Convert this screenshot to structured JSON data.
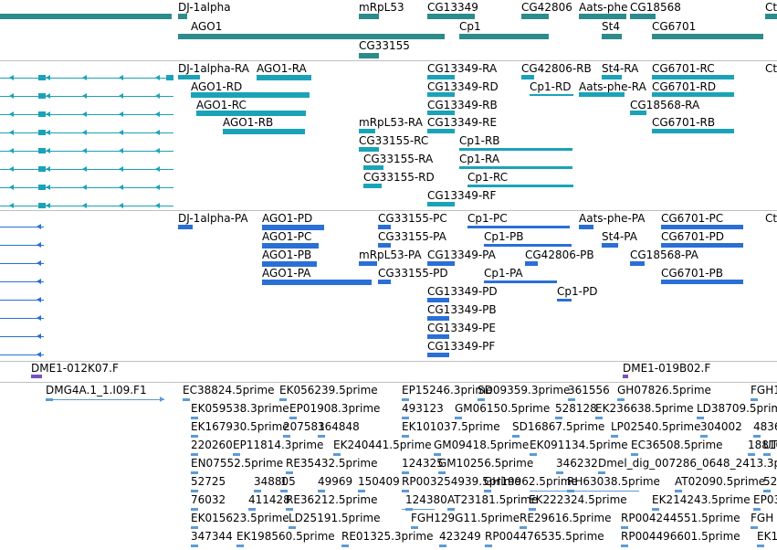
{
  "colors": {
    "gene": "#2e8b8b",
    "transcript": "#1aa3b8",
    "protein": "#2a6fd6",
    "clone": "#7a4fc0",
    "est": "#5b9bd5",
    "sep": "#bfbfbf"
  },
  "tracks": {
    "gene": {
      "labels": [
        "DJ-1alpha",
        "mRpL53",
        "CG13349",
        "CG42806",
        "Aats-phe",
        "CG18568",
        "Ctr",
        "AGO1",
        "Cp1",
        "St4",
        "CG6701",
        "CG33155"
      ]
    },
    "transcript": {
      "labels": [
        "DJ-1alpha-RA",
        "AGO1-RA",
        "CG13349-RA",
        "CG42806-RB",
        "St4-RA",
        "CG6701-RC",
        "Ctr",
        "AGO1-RD",
        "CG13349-RD",
        "Cp1-RD",
        "Aats-phe-RA",
        "CG6701-RD",
        "AGO1-RC",
        "CG13349-RB",
        "CG18568-RA",
        "AGO1-RB",
        "mRpL53-RA",
        "CG13349-RE",
        "CG6701-RB",
        "CG33155-RC",
        "Cp1-RB",
        "CG33155-RA",
        "Cp1-RA",
        "CG33155-RD",
        "Cp1-RC",
        "CG13349-RF"
      ]
    },
    "protein": {
      "labels": [
        "DJ-1alpha-PA",
        "AGO1-PD",
        "CG33155-PC",
        "Cp1-PC",
        "Aats-phe-PA",
        "CG6701-PC",
        "Ctr",
        "AGO1-PC",
        "CG33155-PA",
        "Cp1-PB",
        "St4-PA",
        "CG6701-PD",
        "AGO1-PB",
        "mRpL53-PA",
        "CG13349-PA",
        "CG42806-PB",
        "CG18568-PA",
        "AGO1-PA",
        "CG33155-PD",
        "Cp1-PA",
        "CG6701-PB",
        "CG13349-PD",
        "Cp1-PD",
        "CG13349-PB",
        "CG13349-PE",
        "CG13349-PF"
      ]
    },
    "clone": {
      "labels": [
        "DME1-012K07.F",
        "DME1-019B02.F"
      ]
    },
    "est": {
      "labels": [
        "DMG4A.1_1.I09.F1",
        "EC38824.5prime",
        "EK056239.5prime",
        "EP15246.3prime",
        "SD09359.3prime",
        "361556",
        "GH07826.5prime",
        "FGH1",
        "EK059538.3prime",
        "EP01908.3prime",
        "493123",
        "GM06150.5prime",
        "528128",
        "EK236638.5prime",
        "LD38709.5prime",
        "EK167930.5prime",
        "207581",
        "364848",
        "EK101037.5prime",
        "SD16867.5prime",
        "LP02540.5prime",
        "304002",
        "4836",
        "220260",
        "EP11814.3prime",
        "EK240441.5prime",
        "GM09418.5prime",
        "EK091134.5prime",
        "EC36508.5prime",
        "188101",
        "UT",
        "EN07552.5prime",
        "RE35432.5prime",
        "124325",
        "GM10256.5prime",
        "346232",
        "Dmel_dig_007286_0648_2413.3prime",
        "52725",
        "348805",
        "1",
        "49969",
        "150409",
        "RP003254939.5prime",
        "GH19962.5prime",
        "RH63038.5prime",
        "AT02090.5prime",
        "52",
        "76032",
        "411428",
        "RE36212.5prime",
        "124380",
        "AT23181.5prime",
        "EK222324.5prime",
        "EK214243.5prime",
        "EP03",
        "EK015623.5prime",
        "LD25191.5prime",
        "FGH129G11.5prime",
        "RE29616.5prime",
        "RP004244551.5prime",
        "FGH",
        "347344",
        "EK198560.5prime",
        "RE01325.3prime",
        "423249",
        "RP004476535.5prime",
        "RP004496601.5prime",
        "EK1"
      ]
    }
  }
}
